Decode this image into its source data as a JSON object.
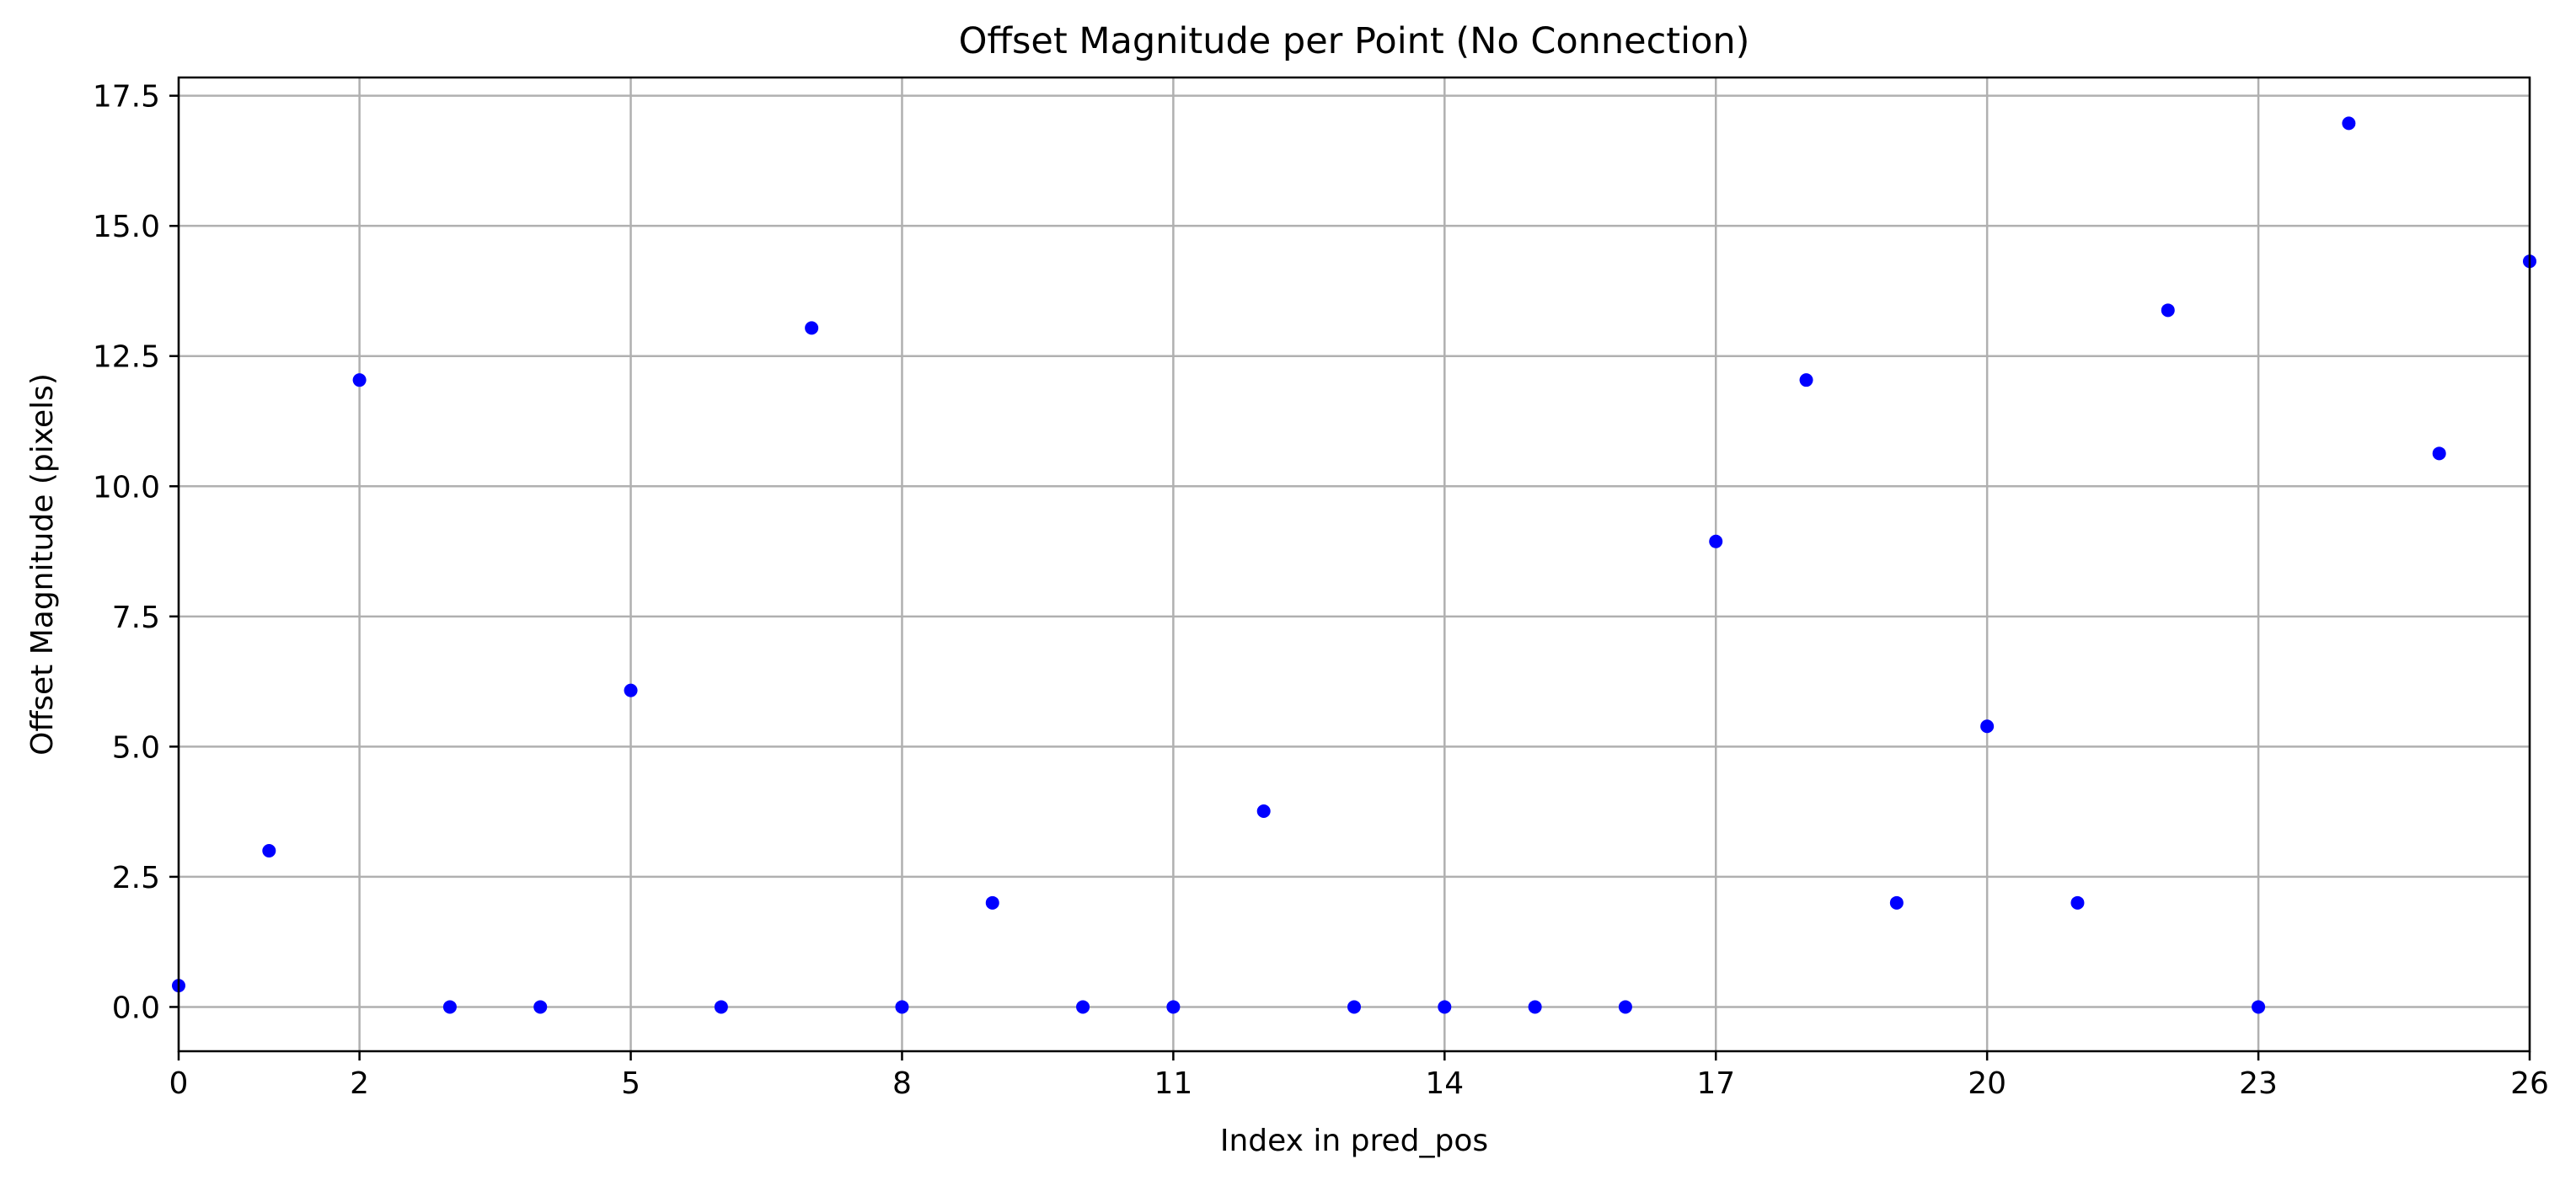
{
  "chart_data": {
    "type": "scatter",
    "title": "Offset Magnitude per Point (No Connection)",
    "xlabel": "Index in pred_pos",
    "ylabel": "Offset Magnitude (pixels)",
    "xlim": [
      0,
      26
    ],
    "ylim": [
      -0.85,
      17.85
    ],
    "x_ticks": [
      0,
      2,
      5,
      8,
      11,
      14,
      17,
      20,
      23,
      26
    ],
    "y_ticks": [
      0.0,
      2.5,
      5.0,
      7.5,
      10.0,
      12.5,
      15.0,
      17.5
    ],
    "y_tick_labels": [
      "0.0",
      "2.5",
      "5.0",
      "7.5",
      "10.0",
      "12.5",
      "15.0",
      "17.5"
    ],
    "grid": true,
    "marker_color": "#0000ff",
    "grid_color": "#b0b0b0",
    "series": [
      {
        "x": [
          0,
          1,
          2,
          3,
          4,
          5,
          6,
          7,
          8,
          9,
          10,
          11,
          12,
          13,
          14,
          15,
          16,
          17,
          18,
          19,
          20,
          21,
          22,
          23,
          24,
          25,
          26
        ],
        "y": [
          0.41,
          3.0,
          12.04,
          0.0,
          0.0,
          6.08,
          0.0,
          13.04,
          0.0,
          2.0,
          0.0,
          0.0,
          3.76,
          0.0,
          0.0,
          0.0,
          0.0,
          8.94,
          12.04,
          2.0,
          5.39,
          2.0,
          13.38,
          0.0,
          16.97,
          10.63,
          14.32
        ]
      }
    ]
  }
}
